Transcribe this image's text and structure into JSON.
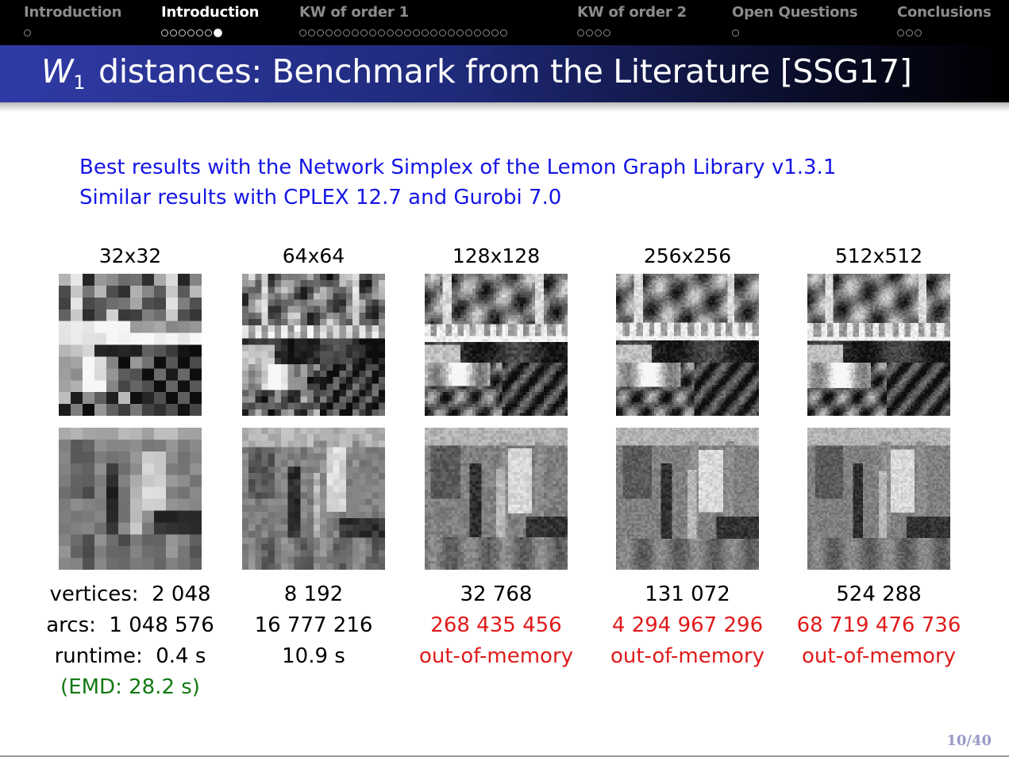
{
  "nav": {
    "sections": [
      {
        "title": "Introduction",
        "dots": 1,
        "current": -1,
        "active": false
      },
      {
        "title": "Introduction",
        "dots": 7,
        "current": 6,
        "active": true
      },
      {
        "title": "KW of order 1",
        "dots": 24,
        "current": -1,
        "active": false
      },
      {
        "title": "KW of order 2",
        "dots": 4,
        "current": -1,
        "active": false
      },
      {
        "title": "Open Questions",
        "dots": 1,
        "current": -1,
        "active": false
      },
      {
        "title": "Conclusions",
        "dots": 3,
        "current": -1,
        "active": false
      }
    ]
  },
  "slide": {
    "title_var": "W",
    "title_sub": "1",
    "title_rest": " distances: Benchmark from the Literature [SSG17]",
    "line1": "Best results with the Network Simplex of the Lemon Graph Library v1.3.1",
    "line2": "Similar results with CPLEX 12.7 and Gurobi 7.0"
  },
  "labels": {
    "vertices": "vertices:",
    "arcs": "arcs:",
    "runtime": "runtime:"
  },
  "columns": [
    {
      "size": "32x32",
      "vertices": "2 048",
      "arcs": "1 048 576",
      "runtime": "0.4 s",
      "emd": "(EMD: 28.2 s)",
      "arcs_red": false
    },
    {
      "size": "64x64",
      "vertices": "8 192",
      "arcs": "16 777 216",
      "runtime": "10.9 s",
      "emd": "",
      "arcs_red": false
    },
    {
      "size": "128x128",
      "vertices": "32 768",
      "arcs": "268 435 456",
      "runtime": "out-of-memory",
      "emd": "",
      "arcs_red": true
    },
    {
      "size": "256x256",
      "vertices": "131 072",
      "arcs": "4 294 967 296",
      "runtime": "out-of-memory",
      "emd": "",
      "arcs_red": true
    },
    {
      "size": "512x512",
      "vertices": "524 288",
      "arcs": "68 719 476 736",
      "runtime": "out-of-memory",
      "emd": "",
      "arcs_red": true
    }
  ],
  "page": "10/40",
  "colors": {
    "nav_bg": "#000000",
    "title_blue": "#303aa6",
    "text_blue": "#1515e6",
    "red": "#e01a1a",
    "green": "#147a14",
    "page_num": "#9a9ac8"
  }
}
